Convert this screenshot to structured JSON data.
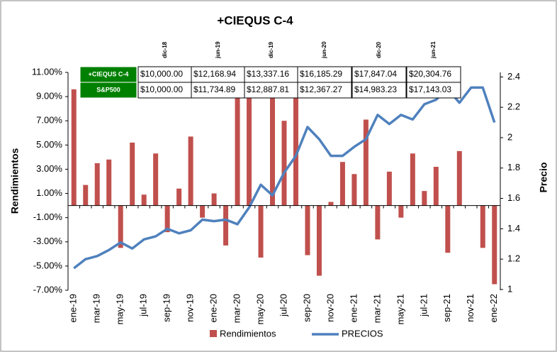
{
  "chart_data": {
    "type": "bar_line",
    "title": "+CIEQUS C-4",
    "ylabel": "Rendimientos",
    "y2label": "Precio",
    "categories": [
      "ene-19",
      null,
      "mar-19",
      null,
      "may-19",
      null,
      "jul-19",
      null,
      "sep-19",
      null,
      "nov-19",
      null,
      "ene-20",
      null,
      "mar-20",
      null,
      "may-20",
      null,
      "jul-20",
      null,
      "sep-20",
      null,
      "nov-20",
      null,
      "ene-21",
      null,
      "mar-21",
      null,
      "may-21",
      null,
      "jul-21",
      null,
      "sep-21",
      null,
      "nov-21",
      null,
      "ene-22"
    ],
    "series": [
      {
        "name": "Rendimientos",
        "color": "#c0504d",
        "kind": "bar",
        "values": [
          9.6,
          1.7,
          3.5,
          3.8,
          -3.5,
          5.2,
          0.9,
          4.3,
          -2.2,
          1.4,
          5.7,
          -1.0,
          1.0,
          -3.3,
          9.5,
          10.0,
          -4.3,
          9.4,
          7.0,
          9.8,
          -4.1,
          -5.8,
          0.3,
          3.6,
          2.6,
          7.1,
          -2.8,
          2.8,
          -1.0,
          4.3,
          1.2,
          3.2,
          -3.9,
          4.5,
          0,
          -3.5,
          -6.5
        ]
      },
      {
        "name": "PRECIOS",
        "color": "#4f81bd",
        "kind": "line",
        "axis": "y2",
        "values": [
          1.14,
          1.2,
          1.22,
          1.26,
          1.31,
          1.27,
          1.33,
          1.35,
          1.4,
          1.37,
          1.39,
          1.46,
          1.45,
          1.46,
          1.43,
          1.54,
          1.69,
          1.62,
          1.77,
          1.88,
          2.07,
          1.99,
          1.88,
          1.88,
          1.94,
          1.99,
          2.15,
          2.09,
          2.15,
          2.12,
          2.22,
          2.25,
          2.32,
          2.23,
          2.33,
          2.33,
          2.1
        ]
      }
    ],
    "ylim": [
      -7,
      11
    ],
    "yticks": [
      {
        "value": -7,
        "label": "-7.00%"
      },
      {
        "value": -5,
        "label": "-5.00%"
      },
      {
        "value": -3,
        "label": "-3.00%"
      },
      {
        "value": -1,
        "label": "-1.00%"
      },
      {
        "value": 1,
        "label": "1.00%"
      },
      {
        "value": 3,
        "label": "3.00%"
      },
      {
        "value": 5,
        "label": "5.00%"
      },
      {
        "value": 7,
        "label": "7.00%"
      },
      {
        "value": 9,
        "label": "9.00%"
      },
      {
        "value": 11,
        "label": "11.00%"
      }
    ],
    "y2lim": [
      0.995,
      2.43
    ],
    "y2ticks": [
      1,
      1.2,
      1.4,
      1.6,
      1.8,
      2,
      2.2,
      2.4
    ],
    "table": {
      "columns": [
        "dic-18",
        "jun-19",
        "dic-19",
        "jun-20",
        "dic-20",
        "jun-21"
      ],
      "rows": [
        {
          "label": "+CIEQUS C-4",
          "values": [
            "$10,000.00",
            "$12,168.94",
            "$13,337.16",
            "$16,185.29",
            "$17,847.04",
            "$20,304.76"
          ]
        },
        {
          "label": "S&P500",
          "values": [
            "$10,000.00",
            "$11,734.89",
            "$12,887.81",
            "$12,367.27",
            "$14,983.23",
            "$17,143.03"
          ]
        }
      ]
    }
  }
}
